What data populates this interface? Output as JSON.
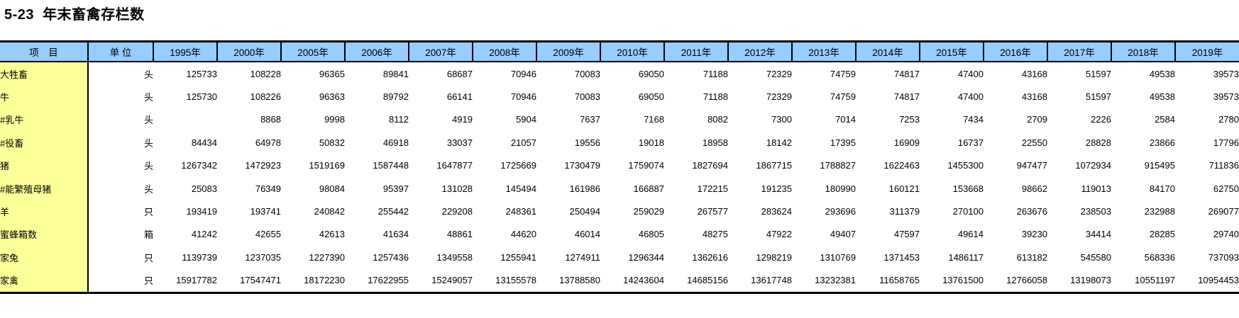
{
  "title": "5-23  年末畜禽存栏数",
  "colors": {
    "header_bg": "#99CCFF",
    "item_column_bg": "#FFFF99",
    "border": "#000000",
    "text": "#000000",
    "page_bg": "#FFFFFF"
  },
  "table": {
    "item_header": "项　目",
    "unit_header": "单 位",
    "year_headers": [
      "1995年",
      "2000年",
      "2005年",
      "2006年",
      "2007年",
      "2008年",
      "2009年",
      "2010年",
      "2011年",
      "2012年",
      "2013年",
      "2014年",
      "2015年",
      "2016年",
      "2017年",
      "2018年",
      "2019年"
    ],
    "rows": [
      {
        "label": "大牲畜",
        "indent": 0,
        "unit": "头",
        "values": [
          125733,
          108228,
          96365,
          89841,
          68687,
          70946,
          70083,
          69050,
          71188,
          72329,
          74759,
          74817,
          47400,
          43168,
          51597,
          49538,
          39573
        ]
      },
      {
        "label": "牛",
        "indent": 1,
        "unit": "头",
        "values": [
          125730,
          108226,
          96363,
          89792,
          66141,
          70946,
          70083,
          69050,
          71188,
          72329,
          74759,
          74817,
          47400,
          43168,
          51597,
          49538,
          39573
        ]
      },
      {
        "label": "#乳牛",
        "indent": 2,
        "unit": "头",
        "values": [
          "",
          8868,
          9998,
          8112,
          4919,
          5904,
          7637,
          7168,
          8082,
          7300,
          7014,
          7253,
          7434,
          2709,
          2226,
          2584,
          2780
        ]
      },
      {
        "label": "#役畜",
        "indent": 2,
        "unit": "头",
        "values": [
          84434,
          64978,
          50832,
          46918,
          33037,
          21057,
          19556,
          19018,
          18958,
          18142,
          17395,
          16909,
          16737,
          22550,
          28828,
          23866,
          17796
        ]
      },
      {
        "label": "猪",
        "indent": 0,
        "unit": "头",
        "values": [
          1267342,
          1472923,
          1519169,
          1587448,
          1647877,
          1725669,
          1730479,
          1759074,
          1827694,
          1867715,
          1788827,
          1622463,
          1455300,
          947477,
          1072934,
          915495,
          711836
        ]
      },
      {
        "label": "#能繁殖母猪",
        "indent": 2,
        "unit": "头",
        "values": [
          25083,
          76349,
          98084,
          95397,
          131028,
          145494,
          161986,
          166887,
          172215,
          191235,
          180990,
          160121,
          153668,
          98662,
          119013,
          84170,
          62750
        ]
      },
      {
        "label": "羊",
        "indent": 0,
        "unit": "只",
        "values": [
          193419,
          193741,
          240842,
          255442,
          229208,
          248361,
          250494,
          259029,
          267577,
          283624,
          293696,
          311379,
          270100,
          263676,
          238503,
          232988,
          269077
        ]
      },
      {
        "label": "蜜蜂箱数",
        "indent": 0,
        "unit": "箱",
        "values": [
          41242,
          42655,
          42613,
          41634,
          48861,
          44620,
          46014,
          46805,
          48275,
          47922,
          49407,
          47597,
          49614,
          39230,
          34414,
          28285,
          29740
        ]
      },
      {
        "label": "家兔",
        "indent": 0,
        "unit": "只",
        "values": [
          1139739,
          1237035,
          1227390,
          1257436,
          1349558,
          1255941,
          1274911,
          1296344,
          1362616,
          1298219,
          1310769,
          1371453,
          1486117,
          613182,
          545580,
          568336,
          737093
        ]
      },
      {
        "label": "家禽",
        "indent": 0,
        "unit": "只",
        "values": [
          15917782,
          17547471,
          18172230,
          17622955,
          15249057,
          13155578,
          13788580,
          14243604,
          14685156,
          13617748,
          13232381,
          11658765,
          13761500,
          12766058,
          13198073,
          10551197,
          10954453
        ]
      }
    ]
  }
}
